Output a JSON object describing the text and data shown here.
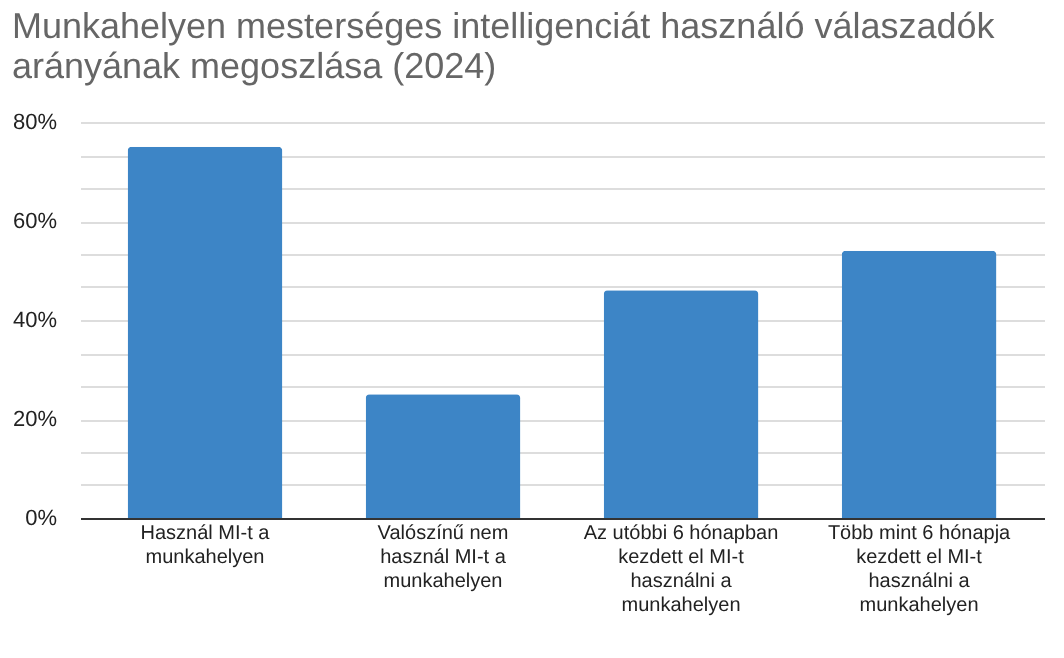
{
  "chart_data": {
    "type": "bar",
    "title": "Munkahelyen mesterséges intelligenciát használó válaszadók arányának megoszlása (2024)",
    "categories": [
      "Használ MI-t a munkahelyen",
      "Valószínű nem használ MI-t a munkahelyen",
      "Az utóbbi 6 hónapban kezdett el MI-t használni a munkahelyen",
      "Több mint 6 hónapja kezdett el MI-t használni a munkahelyen"
    ],
    "values": [
      75,
      25,
      46,
      54
    ],
    "color": "#3d85c6",
    "ylim": [
      0,
      80
    ],
    "yticks": [
      {
        "value": 0,
        "label": "0%"
      },
      {
        "value": 6.67,
        "label": null
      },
      {
        "value": 13.33,
        "label": null
      },
      {
        "value": 20,
        "label": "20%"
      },
      {
        "value": 26.67,
        "label": null
      },
      {
        "value": 33.33,
        "label": null
      },
      {
        "value": 40,
        "label": "40%"
      },
      {
        "value": 46.67,
        "label": null
      },
      {
        "value": 53.33,
        "label": null
      },
      {
        "value": 60,
        "label": "60%"
      },
      {
        "value": 66.67,
        "label": null
      },
      {
        "value": 73.33,
        "label": null
      },
      {
        "value": 80,
        "label": "80%"
      }
    ],
    "grid": true
  }
}
